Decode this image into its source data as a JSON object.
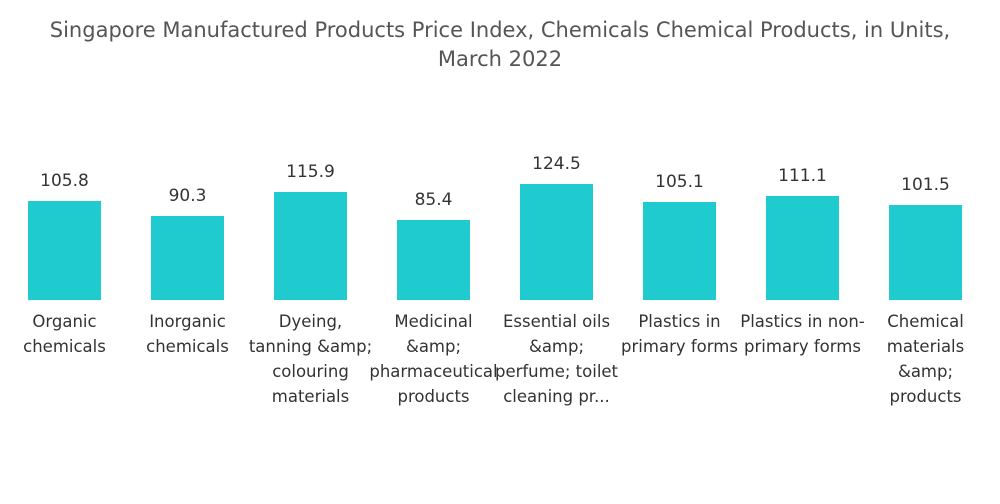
{
  "chart_data": {
    "type": "bar",
    "title": "Singapore Manufactured Products Price Index, Chemicals Chemical Products, in Units, March 2022",
    "categories": [
      "Organic chemicals",
      "Inorganic chemicals",
      "Dyeing, tanning &amp; colouring materials",
      "Medicinal &amp; pharmaceutical products",
      "Essential oils &amp; perfume; toilet cleaning pr...",
      "Plastics in primary forms",
      "Plastics in non-primary forms",
      "Chemical materials &amp; products"
    ],
    "values": [
      105.8,
      90.3,
      115.9,
      85.4,
      124.5,
      105.1,
      111.1,
      101.5
    ],
    "color": "#1fcbcf"
  }
}
